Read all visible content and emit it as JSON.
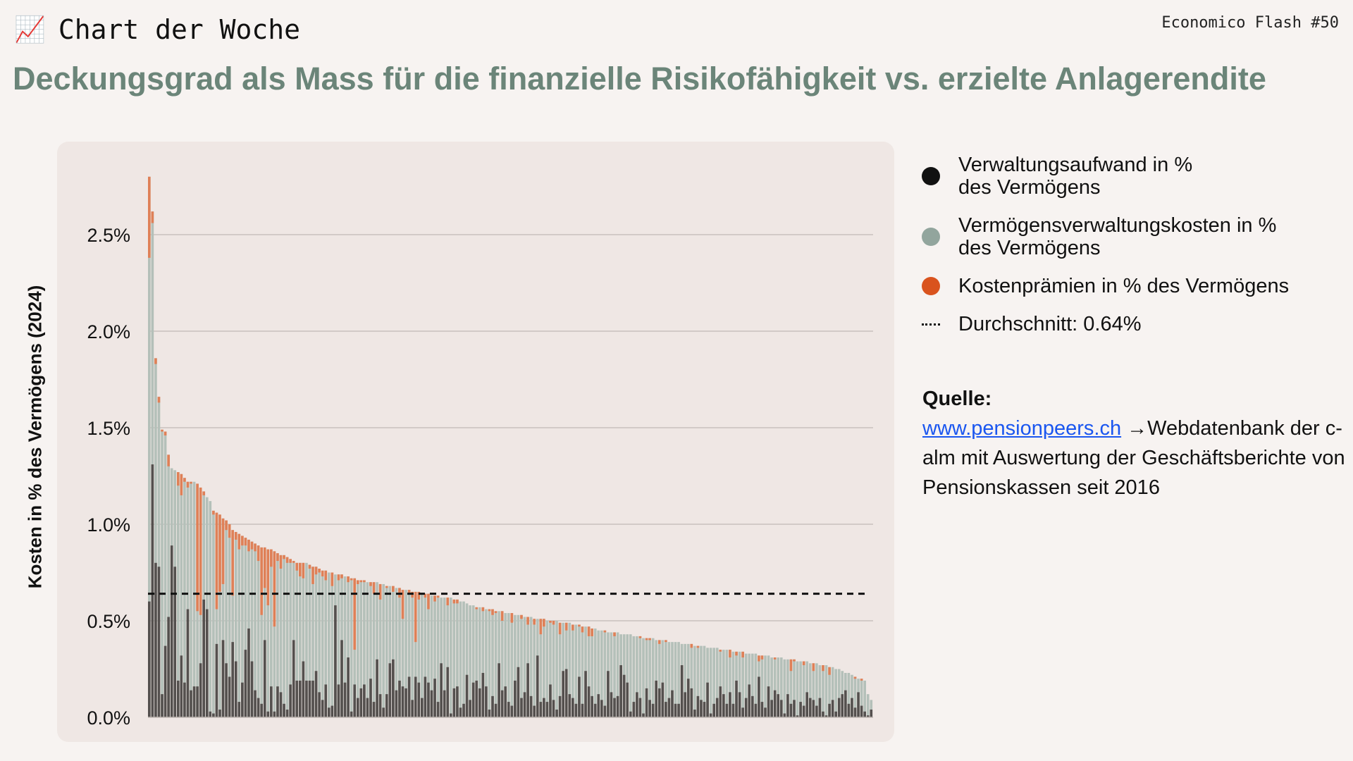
{
  "header": {
    "kicker_icon": "chart-increasing-icon",
    "kicker_emoji": "📈",
    "kicker": "Chart der Woche",
    "issue": "Economico Flash #50",
    "title": "Deckungsgrad als Mass für die finanzielle Risikofähigkeit vs. erzielte Anlagerendite"
  },
  "legend": {
    "items": [
      {
        "label_line1": "Verwaltungsaufwand in %",
        "label_line2": "des Vermögens",
        "color": "#111111"
      },
      {
        "label_line1": "Vermögensverwaltungskosten in %",
        "label_line2": "des Vermögens",
        "color": "#92a59d"
      },
      {
        "label_line1": "Kostenprämien in % des Vermögens",
        "label_line2": "",
        "color": "#d9531e"
      }
    ],
    "average": "Durchschnitt: 0.64%"
  },
  "source": {
    "heading": "Quelle:",
    "link": "www.pensionpeers.ch",
    "arrow_text": "→Webdatenbank",
    "rest": "der c-alm mit Auswertung der Geschäftsberichte von Pensionskassen seit 2016"
  },
  "chart_data": {
    "type": "bar",
    "title": "",
    "ylabel": "Kosten in % des Vermögens (2024)",
    "xlabel": "",
    "ylim": [
      0,
      2.8
    ],
    "yticks": [
      0,
      0.5,
      1.0,
      1.5,
      2.0,
      2.5
    ],
    "ytick_labels": [
      "0.0%",
      "0.5%",
      "1.0%",
      "1.5%",
      "2.0%",
      "2.5%"
    ],
    "grid": true,
    "average": 0.64,
    "colors": {
      "admin": "#4f4a48",
      "asset": "#b4c0b9",
      "premium": "#e3794c",
      "avg": "#111111"
    },
    "total": [
      2.8,
      2.62,
      1.86,
      1.66,
      1.49,
      1.48,
      1.36,
      1.29,
      1.28,
      1.27,
      1.26,
      1.24,
      1.22,
      1.22,
      1.22,
      1.21,
      1.19,
      1.17,
      1.14,
      1.12,
      1.07,
      1.06,
      1.05,
      1.03,
      1.02,
      1.0,
      0.97,
      0.96,
      0.95,
      0.94,
      0.93,
      0.92,
      0.91,
      0.9,
      0.89,
      0.88,
      0.88,
      0.87,
      0.87,
      0.86,
      0.85,
      0.84,
      0.84,
      0.83,
      0.82,
      0.81,
      0.8,
      0.8,
      0.8,
      0.8,
      0.79,
      0.78,
      0.78,
      0.77,
      0.76,
      0.76,
      0.75,
      0.75,
      0.74,
      0.74,
      0.74,
      0.73,
      0.73,
      0.72,
      0.72,
      0.71,
      0.71,
      0.71,
      0.7,
      0.7,
      0.7,
      0.7,
      0.69,
      0.69,
      0.68,
      0.68,
      0.68,
      0.67,
      0.67,
      0.66,
      0.66,
      0.66,
      0.65,
      0.65,
      0.65,
      0.64,
      0.64,
      0.64,
      0.63,
      0.63,
      0.63,
      0.62,
      0.62,
      0.62,
      0.62,
      0.61,
      0.61,
      0.6,
      0.6,
      0.59,
      0.58,
      0.58,
      0.57,
      0.57,
      0.57,
      0.56,
      0.56,
      0.56,
      0.55,
      0.55,
      0.55,
      0.54,
      0.54,
      0.54,
      0.53,
      0.53,
      0.53,
      0.52,
      0.52,
      0.52,
      0.51,
      0.51,
      0.51,
      0.51,
      0.5,
      0.5,
      0.5,
      0.5,
      0.49,
      0.49,
      0.49,
      0.49,
      0.48,
      0.48,
      0.48,
      0.47,
      0.47,
      0.47,
      0.46,
      0.46,
      0.45,
      0.45,
      0.45,
      0.44,
      0.44,
      0.44,
      0.44,
      0.43,
      0.43,
      0.43,
      0.43,
      0.42,
      0.42,
      0.42,
      0.41,
      0.41,
      0.41,
      0.41,
      0.4,
      0.4,
      0.4,
      0.4,
      0.39,
      0.39,
      0.39,
      0.39,
      0.38,
      0.38,
      0.38,
      0.38,
      0.37,
      0.37,
      0.37,
      0.37,
      0.36,
      0.36,
      0.36,
      0.36,
      0.35,
      0.35,
      0.35,
      0.35,
      0.34,
      0.34,
      0.34,
      0.34,
      0.33,
      0.33,
      0.33,
      0.33,
      0.32,
      0.32,
      0.32,
      0.32,
      0.31,
      0.31,
      0.31,
      0.31,
      0.3,
      0.3,
      0.3,
      0.3,
      0.29,
      0.29,
      0.29,
      0.29,
      0.28,
      0.28,
      0.28,
      0.27,
      0.27,
      0.27,
      0.26,
      0.26,
      0.25,
      0.25,
      0.24,
      0.23,
      0.23,
      0.22,
      0.21,
      0.2,
      0.2,
      0.19,
      0.12,
      0.09
    ],
    "premium": [
      0.42,
      0.06,
      0.03,
      0.03,
      0.01,
      0.02,
      0.06,
      0,
      0,
      0.07,
      0.11,
      0.02,
      0.03,
      0.01,
      0,
      0.66,
      0.66,
      0.02,
      0,
      0,
      0.02,
      0.5,
      0.4,
      0.34,
      0.05,
      0.07,
      0.34,
      0.04,
      0.08,
      0.05,
      0.04,
      0.06,
      0.04,
      0.04,
      0.08,
      0.35,
      0.21,
      0.29,
      0.09,
      0.39,
      0.04,
      0.07,
      0.02,
      0.03,
      0.02,
      0.01,
      0.04,
      0.07,
      0.08,
      0,
      0.02,
      0.09,
      0.04,
      0.02,
      0.03,
      0.05,
      0,
      0.07,
      0,
      0.03,
      0.02,
      0,
      0.03,
      0.01,
      0.37,
      0.02,
      0.01,
      0.01,
      0,
      0.02,
      0.06,
      0,
      0.08,
      0,
      0.01,
      0,
      0.03,
      0,
      0.05,
      0.15,
      0,
      0.02,
      0.03,
      0.26,
      0.04,
      0,
      0.02,
      0.08,
      0,
      0.03,
      0.01,
      0,
      0,
      0.04,
      0,
      0.02,
      0.02,
      0,
      0,
      0,
      0,
      0,
      0.01,
      0,
      0.02,
      0,
      0.01,
      0.03,
      0.01,
      0,
      0.05,
      0,
      0,
      0.05,
      0,
      0,
      0.02,
      0,
      0.04,
      0,
      0.03,
      0,
      0.08,
      0.04,
      0,
      0.01,
      0.02,
      0,
      0.06,
      0,
      0.04,
      0,
      0.03,
      0,
      0.01,
      0.03,
      0,
      0.05,
      0.04,
      0,
      0,
      0,
      0.01,
      0,
      0,
      0.02,
      0,
      0,
      0,
      0,
      0,
      0,
      0,
      0.01,
      0,
      0.01,
      0.01,
      0,
      0,
      0.02,
      0,
      0.01,
      0,
      0,
      0,
      0,
      0,
      0,
      0,
      0.02,
      0,
      0.01,
      0,
      0,
      0,
      0,
      0,
      0,
      0.01,
      0,
      0,
      0.04,
      0,
      0.02,
      0,
      0.03,
      0,
      0,
      0,
      0,
      0.03,
      0.02,
      0,
      0,
      0,
      0.01,
      0,
      0,
      0,
      0,
      0.06,
      0.01,
      0,
      0,
      0.02,
      0,
      0,
      0.04,
      0,
      0,
      0.03,
      0,
      0.04,
      0,
      0,
      0,
      0,
      0,
      0,
      0,
      0.01,
      0,
      0.01,
      0,
      0,
      0
    ],
    "admin": [
      0.6,
      1.31,
      0.8,
      0.78,
      0.12,
      0.37,
      0.52,
      0.89,
      0.78,
      0.19,
      0.32,
      0.18,
      0.56,
      0.14,
      0.16,
      0.16,
      0.28,
      0.61,
      0.56,
      0.03,
      0.02,
      0.38,
      0.04,
      0.4,
      0.28,
      0.21,
      0.39,
      0.29,
      0.08,
      0.18,
      0.35,
      0.46,
      0.29,
      0.14,
      0.1,
      0.07,
      0.4,
      0.03,
      0.16,
      0.03,
      0.16,
      0.13,
      0.07,
      0.04,
      0.17,
      0.4,
      0.19,
      0.19,
      0.29,
      0.19,
      0.19,
      0.19,
      0.24,
      0.13,
      0.09,
      0.17,
      0.05,
      0.06,
      0.58,
      0.17,
      0.4,
      0.18,
      0.31,
      0.03,
      0.17,
      0.1,
      0.15,
      0.17,
      0.1,
      0.2,
      0.08,
      0.3,
      0.12,
      0.05,
      0.12,
      0.28,
      0.3,
      0.14,
      0.19,
      0.16,
      0.15,
      0.21,
      0.09,
      0.21,
      0.18,
      0.1,
      0.21,
      0.18,
      0.14,
      0.2,
      0.08,
      0.28,
      0.14,
      0.26,
      0.02,
      0.15,
      0.16,
      0.05,
      0.07,
      0.22,
      0.09,
      0.18,
      0.19,
      0.15,
      0.23,
      0.16,
      0.04,
      0.11,
      0.07,
      0.28,
      0.14,
      0.16,
      0.08,
      0.06,
      0.19,
      0.26,
      0.1,
      0.13,
      0.28,
      0.11,
      0.06,
      0.32,
      0.08,
      0.1,
      0.08,
      0.17,
      0.09,
      0.04,
      0.11,
      0.24,
      0.25,
      0.12,
      0.1,
      0.07,
      0.21,
      0.07,
      0.24,
      0.16,
      0.11,
      0.07,
      0.12,
      0.09,
      0.06,
      0.24,
      0.13,
      0.1,
      0.11,
      0.27,
      0.22,
      0.18,
      0.03,
      0.08,
      0.13,
      0.1,
      0.02,
      0.15,
      0.09,
      0.07,
      0.19,
      0.15,
      0.18,
      0.08,
      0.1,
      0.14,
      0.07,
      0.07,
      0.27,
      0.13,
      0.2,
      0.15,
      0.04,
      0.11,
      0.09,
      0.08,
      0.18,
      0.02,
      0.07,
      0.1,
      0.16,
      0.12,
      0.07,
      0.13,
      0.07,
      0.19,
      0.13,
      0.05,
      0.1,
      0.17,
      0.11,
      0.07,
      0.21,
      0.08,
      0.05,
      0.16,
      0.09,
      0.14,
      0.12,
      0.09,
      0.02,
      0.12,
      0.07,
      0.09,
      0.01,
      0.08,
      0.06,
      0.13,
      0.1,
      0.09,
      0.06,
      0.1,
      0.03,
      0.01,
      0.07,
      0.09,
      0.03,
      0.1,
      0.12,
      0.14,
      0.07,
      0.1,
      0.05,
      0.13,
      0.06,
      0.03,
      0.01,
      0.04
    ]
  }
}
